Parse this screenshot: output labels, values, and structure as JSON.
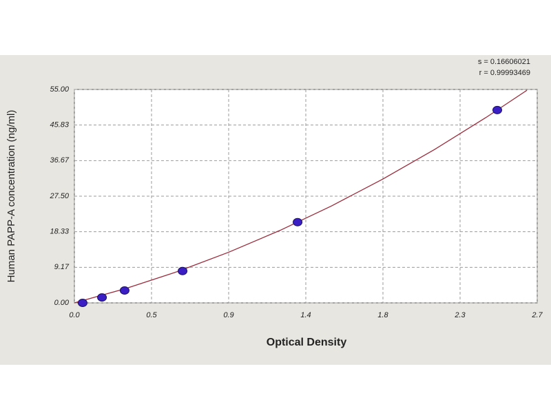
{
  "chart_data": {
    "type": "scatter",
    "annotations": [
      "s = 0.16606021",
      "r = 0.99993469"
    ],
    "x_label": "Optical Density",
    "y_label": "Human PAPP-A concentration (ng/ml)",
    "xlim": [
      0,
      2.7
    ],
    "ylim": [
      0,
      55
    ],
    "xticks": [
      {
        "value": 0,
        "label": "0.0"
      },
      {
        "value": 0.45,
        "label": "0.5"
      },
      0.9,
      {
        "value": 1.35,
        "label": "1.4"
      },
      1.8,
      {
        "value": 2.25,
        "label": "2.3"
      },
      2.7
    ],
    "yticks": [
      {
        "value": 0,
        "label": "0.00"
      },
      {
        "value": 9.17,
        "label": "9.17"
      },
      {
        "value": 18.33,
        "label": "18.33"
      },
      {
        "value": 27.5,
        "label": "27.50"
      },
      {
        "value": 36.67,
        "label": "36.67"
      },
      {
        "value": 45.83,
        "label": "45.83"
      },
      {
        "value": 55,
        "label": "55.00"
      }
    ],
    "grid": true,
    "series": [
      {
        "type": "line",
        "color": "#9c2a3a",
        "x": [
          0,
          0.3,
          0.6,
          0.9,
          1.2,
          1.5,
          1.8,
          2.1,
          2.4,
          2.64
        ],
        "values": [
          0,
          3.7,
          8.05,
          13.05,
          18.69,
          24.99,
          31.93,
          39.51,
          47.75,
          54.8
        ]
      },
      {
        "type": "scatter",
        "color": "#3b1fc4",
        "x": [
          0.048,
          0.161,
          0.293,
          0.631,
          1.302,
          2.467
        ],
        "values": [
          0,
          1.4,
          3.2,
          8.2,
          20.8,
          49.7
        ]
      }
    ]
  }
}
